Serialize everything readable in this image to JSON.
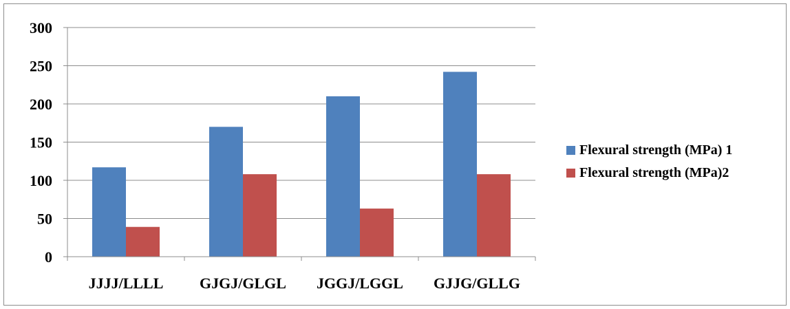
{
  "colors": {
    "series_1": "#4f81bd",
    "series_2": "#c0504d",
    "grid": "#8c8c8c",
    "axis": "#8c8c8c"
  },
  "chart_data": {
    "type": "bar",
    "title": "",
    "xlabel": "",
    "ylabel": "",
    "ylim": [
      0,
      300
    ],
    "yticks": [
      0,
      50,
      100,
      150,
      200,
      250,
      300
    ],
    "grid": true,
    "legend_position": "right",
    "categories": [
      "JJJJ/LLLL",
      "GJGJ/GLGL",
      "JGGJ/LGGL",
      "GJJG/GLLG"
    ],
    "series": [
      {
        "name": "Flexural strength (MPa) 1",
        "values": [
          117,
          170,
          210,
          242
        ],
        "color": "#4f81bd"
      },
      {
        "name": "Flexural strength (MPa)2",
        "values": [
          39,
          108,
          63,
          108
        ],
        "color": "#c0504d"
      }
    ]
  }
}
